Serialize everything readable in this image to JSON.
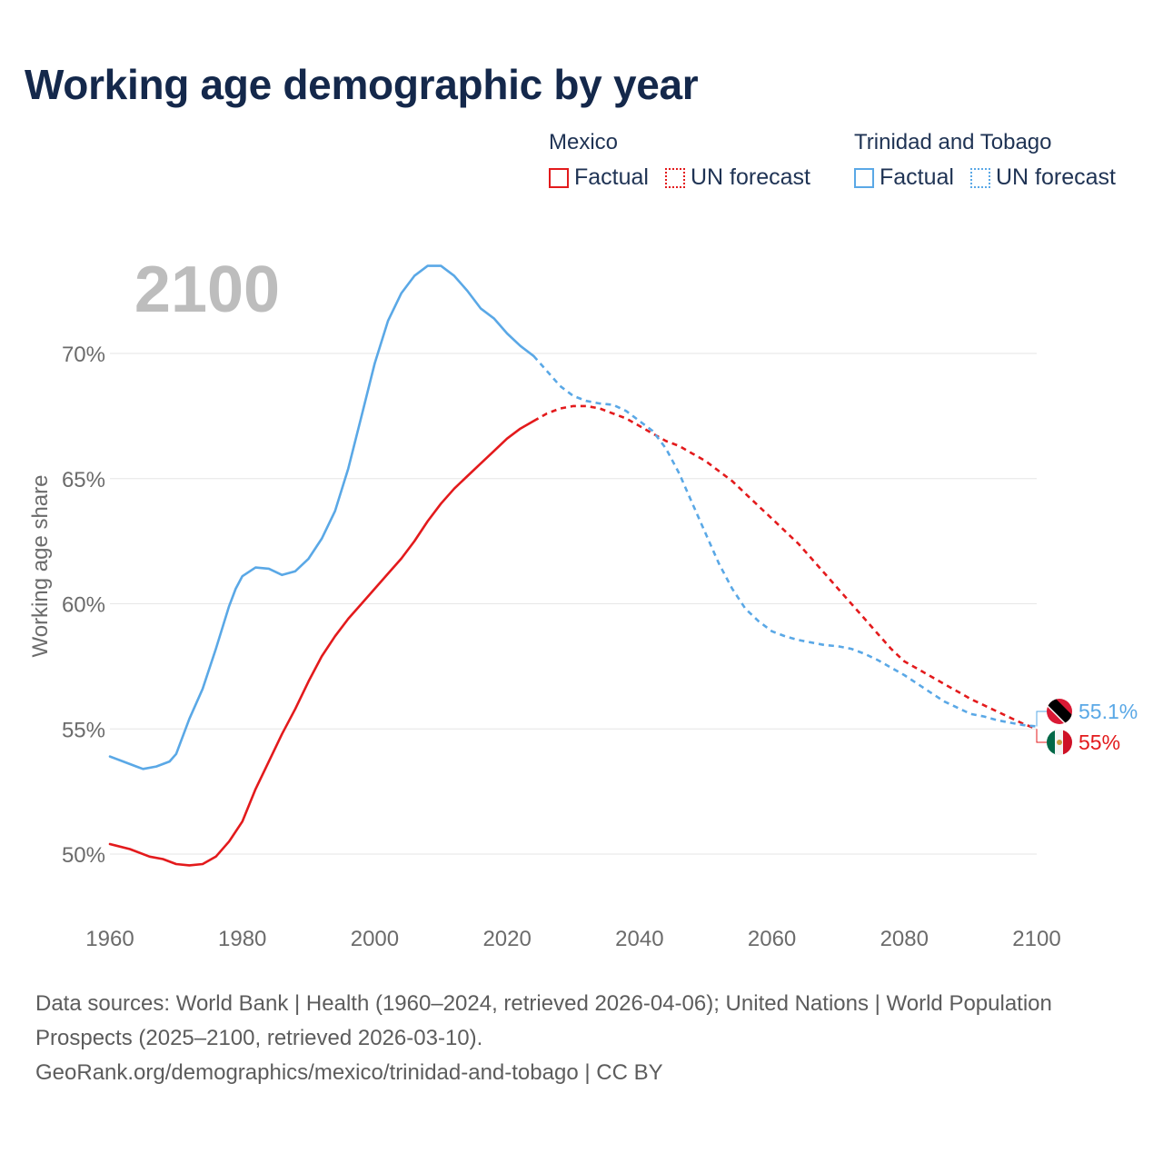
{
  "title": "Working age demographic by year",
  "year_label": "2100",
  "legend": {
    "groups": [
      {
        "name": "Mexico",
        "color": "#e31a1c",
        "items": [
          {
            "label": "Factual",
            "style": "solid"
          },
          {
            "label": "UN forecast",
            "style": "dotted"
          }
        ]
      },
      {
        "name": "Trinidad and Tobago",
        "color": "#5aa8e6",
        "items": [
          {
            "label": "Factual",
            "style": "solid"
          },
          {
            "label": "UN forecast",
            "style": "dotted"
          }
        ]
      }
    ]
  },
  "sources": {
    "line1": "Data sources: World Bank | Health (1960–2024, retrieved 2026-04-06); United Nations | World Population Prospects (2025–2100, retrieved 2026-03-10).",
    "line2": "GeoRank.org/demographics/mexico/trinidad-and-tobago | CC BY"
  },
  "chart_data": {
    "type": "line",
    "title": "Working age demographic by year",
    "xlabel": "",
    "ylabel": "Working age share",
    "xlim": [
      1960,
      2100
    ],
    "ylim": [
      48,
      74
    ],
    "x_ticks": [
      1960,
      1980,
      2000,
      2020,
      2040,
      2060,
      2080,
      2100
    ],
    "x_tick_labels": [
      "1960",
      "1980",
      "2000",
      "2020",
      "2040",
      "2060",
      "2080",
      "2100"
    ],
    "y_ticks": [
      50,
      55,
      60,
      65,
      70
    ],
    "y_tick_labels": [
      "50%",
      "55%",
      "60%",
      "65%",
      "70%"
    ],
    "factual_until": 2024,
    "series": [
      {
        "name": "Mexico",
        "color": "#e31a1c",
        "end_label": "55%",
        "flag": "mexico-flag-icon",
        "points": [
          [
            1960,
            50.4
          ],
          [
            1963,
            50.2
          ],
          [
            1966,
            49.9
          ],
          [
            1968,
            49.8
          ],
          [
            1970,
            49.6
          ],
          [
            1972,
            49.55
          ],
          [
            1974,
            49.6
          ],
          [
            1976,
            49.9
          ],
          [
            1978,
            50.5
          ],
          [
            1980,
            51.3
          ],
          [
            1982,
            52.6
          ],
          [
            1984,
            53.7
          ],
          [
            1986,
            54.8
          ],
          [
            1988,
            55.8
          ],
          [
            1990,
            56.9
          ],
          [
            1992,
            57.9
          ],
          [
            1994,
            58.7
          ],
          [
            1996,
            59.4
          ],
          [
            1998,
            60.0
          ],
          [
            2000,
            60.6
          ],
          [
            2002,
            61.2
          ],
          [
            2004,
            61.8
          ],
          [
            2006,
            62.5
          ],
          [
            2008,
            63.3
          ],
          [
            2010,
            64.0
          ],
          [
            2012,
            64.6
          ],
          [
            2014,
            65.1
          ],
          [
            2016,
            65.6
          ],
          [
            2018,
            66.1
          ],
          [
            2020,
            66.6
          ],
          [
            2022,
            67.0
          ],
          [
            2024,
            67.3
          ],
          [
            2026,
            67.6
          ],
          [
            2028,
            67.8
          ],
          [
            2030,
            67.9
          ],
          [
            2032,
            67.9
          ],
          [
            2034,
            67.8
          ],
          [
            2036,
            67.6
          ],
          [
            2038,
            67.4
          ],
          [
            2040,
            67.1
          ],
          [
            2042,
            66.8
          ],
          [
            2044,
            66.5
          ],
          [
            2046,
            66.3
          ],
          [
            2048,
            66.0
          ],
          [
            2050,
            65.7
          ],
          [
            2052,
            65.3
          ],
          [
            2054,
            64.9
          ],
          [
            2056,
            64.4
          ],
          [
            2058,
            63.9
          ],
          [
            2060,
            63.4
          ],
          [
            2062,
            62.9
          ],
          [
            2064,
            62.4
          ],
          [
            2066,
            61.8
          ],
          [
            2068,
            61.2
          ],
          [
            2070,
            60.6
          ],
          [
            2072,
            60.0
          ],
          [
            2074,
            59.4
          ],
          [
            2076,
            58.8
          ],
          [
            2078,
            58.2
          ],
          [
            2080,
            57.7
          ],
          [
            2082,
            57.4
          ],
          [
            2084,
            57.1
          ],
          [
            2086,
            56.8
          ],
          [
            2088,
            56.5
          ],
          [
            2090,
            56.2
          ],
          [
            2092,
            55.95
          ],
          [
            2094,
            55.7
          ],
          [
            2096,
            55.45
          ],
          [
            2098,
            55.2
          ],
          [
            2100,
            55.0
          ]
        ]
      },
      {
        "name": "Trinidad and Tobago",
        "color": "#5aa8e6",
        "end_label": "55.1%",
        "flag": "trinidad-and-tobago-flag-icon",
        "points": [
          [
            1960,
            53.9
          ],
          [
            1962,
            53.7
          ],
          [
            1964,
            53.5
          ],
          [
            1965,
            53.4
          ],
          [
            1967,
            53.5
          ],
          [
            1969,
            53.7
          ],
          [
            1970,
            54.0
          ],
          [
            1972,
            55.4
          ],
          [
            1974,
            56.6
          ],
          [
            1976,
            58.2
          ],
          [
            1978,
            59.9
          ],
          [
            1979,
            60.6
          ],
          [
            1980,
            61.1
          ],
          [
            1982,
            61.45
          ],
          [
            1984,
            61.4
          ],
          [
            1986,
            61.15
          ],
          [
            1988,
            61.3
          ],
          [
            1990,
            61.8
          ],
          [
            1992,
            62.6
          ],
          [
            1994,
            63.7
          ],
          [
            1996,
            65.4
          ],
          [
            1998,
            67.5
          ],
          [
            2000,
            69.6
          ],
          [
            2002,
            71.3
          ],
          [
            2004,
            72.4
          ],
          [
            2006,
            73.1
          ],
          [
            2008,
            73.5
          ],
          [
            2010,
            73.5
          ],
          [
            2012,
            73.1
          ],
          [
            2014,
            72.5
          ],
          [
            2016,
            71.8
          ],
          [
            2018,
            71.4
          ],
          [
            2020,
            70.8
          ],
          [
            2022,
            70.3
          ],
          [
            2024,
            69.9
          ],
          [
            2026,
            69.3
          ],
          [
            2028,
            68.7
          ],
          [
            2030,
            68.3
          ],
          [
            2032,
            68.1
          ],
          [
            2034,
            68.0
          ],
          [
            2036,
            67.95
          ],
          [
            2038,
            67.7
          ],
          [
            2040,
            67.3
          ],
          [
            2042,
            66.9
          ],
          [
            2044,
            66.2
          ],
          [
            2046,
            65.2
          ],
          [
            2048,
            64.0
          ],
          [
            2050,
            62.8
          ],
          [
            2052,
            61.6
          ],
          [
            2054,
            60.6
          ],
          [
            2056,
            59.8
          ],
          [
            2058,
            59.3
          ],
          [
            2060,
            58.9
          ],
          [
            2062,
            58.7
          ],
          [
            2064,
            58.55
          ],
          [
            2066,
            58.45
          ],
          [
            2068,
            58.35
          ],
          [
            2070,
            58.3
          ],
          [
            2072,
            58.2
          ],
          [
            2074,
            58.0
          ],
          [
            2076,
            57.75
          ],
          [
            2078,
            57.45
          ],
          [
            2080,
            57.15
          ],
          [
            2082,
            56.8
          ],
          [
            2084,
            56.45
          ],
          [
            2086,
            56.1
          ],
          [
            2088,
            55.85
          ],
          [
            2090,
            55.6
          ],
          [
            2092,
            55.5
          ],
          [
            2094,
            55.35
          ],
          [
            2096,
            55.25
          ],
          [
            2098,
            55.15
          ],
          [
            2100,
            55.1
          ]
        ]
      }
    ]
  }
}
